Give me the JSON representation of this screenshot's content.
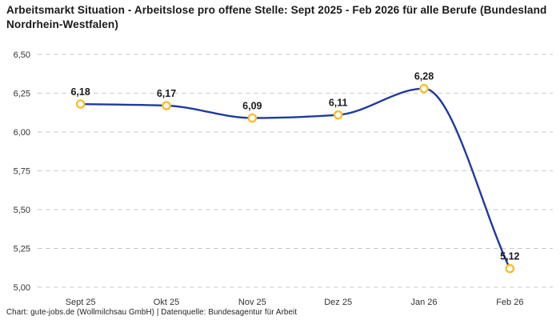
{
  "header": {
    "title": "Arbeitsmarkt Situation - Arbeitslose pro offene Stelle: Sept 2025 - Feb 2026 für alle Berufe (Bundesland Nordrhein-Westfalen)"
  },
  "footer": {
    "attribution": "Chart: gute-jobs.de (Wollmilchsau GmbH) | Datenquelle: Bundesagentur für Arbeit"
  },
  "chart_data": {
    "type": "line",
    "title": "Arbeitsmarkt Situation - Arbeitslose pro offene Stelle: Sept 2025 - Feb 2026 für alle Berufe (Bundesland Nordrhein-Westfalen)",
    "xlabel": "",
    "ylabel": "",
    "categories": [
      "Sept 25",
      "Okt 25",
      "Nov 25",
      "Dez 25",
      "Jan 26",
      "Feb 26"
    ],
    "values": [
      6.18,
      6.17,
      6.09,
      6.11,
      6.28,
      5.12
    ],
    "point_labels": [
      "6,18",
      "6,17",
      "6,09",
      "6,11",
      "6,28",
      "5,12"
    ],
    "ylim": [
      5.0,
      6.5
    ],
    "yticks": [
      5.0,
      5.25,
      5.5,
      5.75,
      6.0,
      6.25,
      6.5
    ],
    "ytick_labels": [
      "5,00",
      "5,25",
      "5,50",
      "5,75",
      "6,00",
      "6,25",
      "6,50"
    ],
    "grid": "horizontal-dashed",
    "legend": "none",
    "line_smooth": true,
    "colors": {
      "line": "#1f3a9e",
      "marker_stroke": "#fbbd2c",
      "marker_fill": "#ffffff",
      "grid": "#c9c9c9",
      "point_label": "#1a1a1a",
      "tick_label": "#333333"
    }
  }
}
